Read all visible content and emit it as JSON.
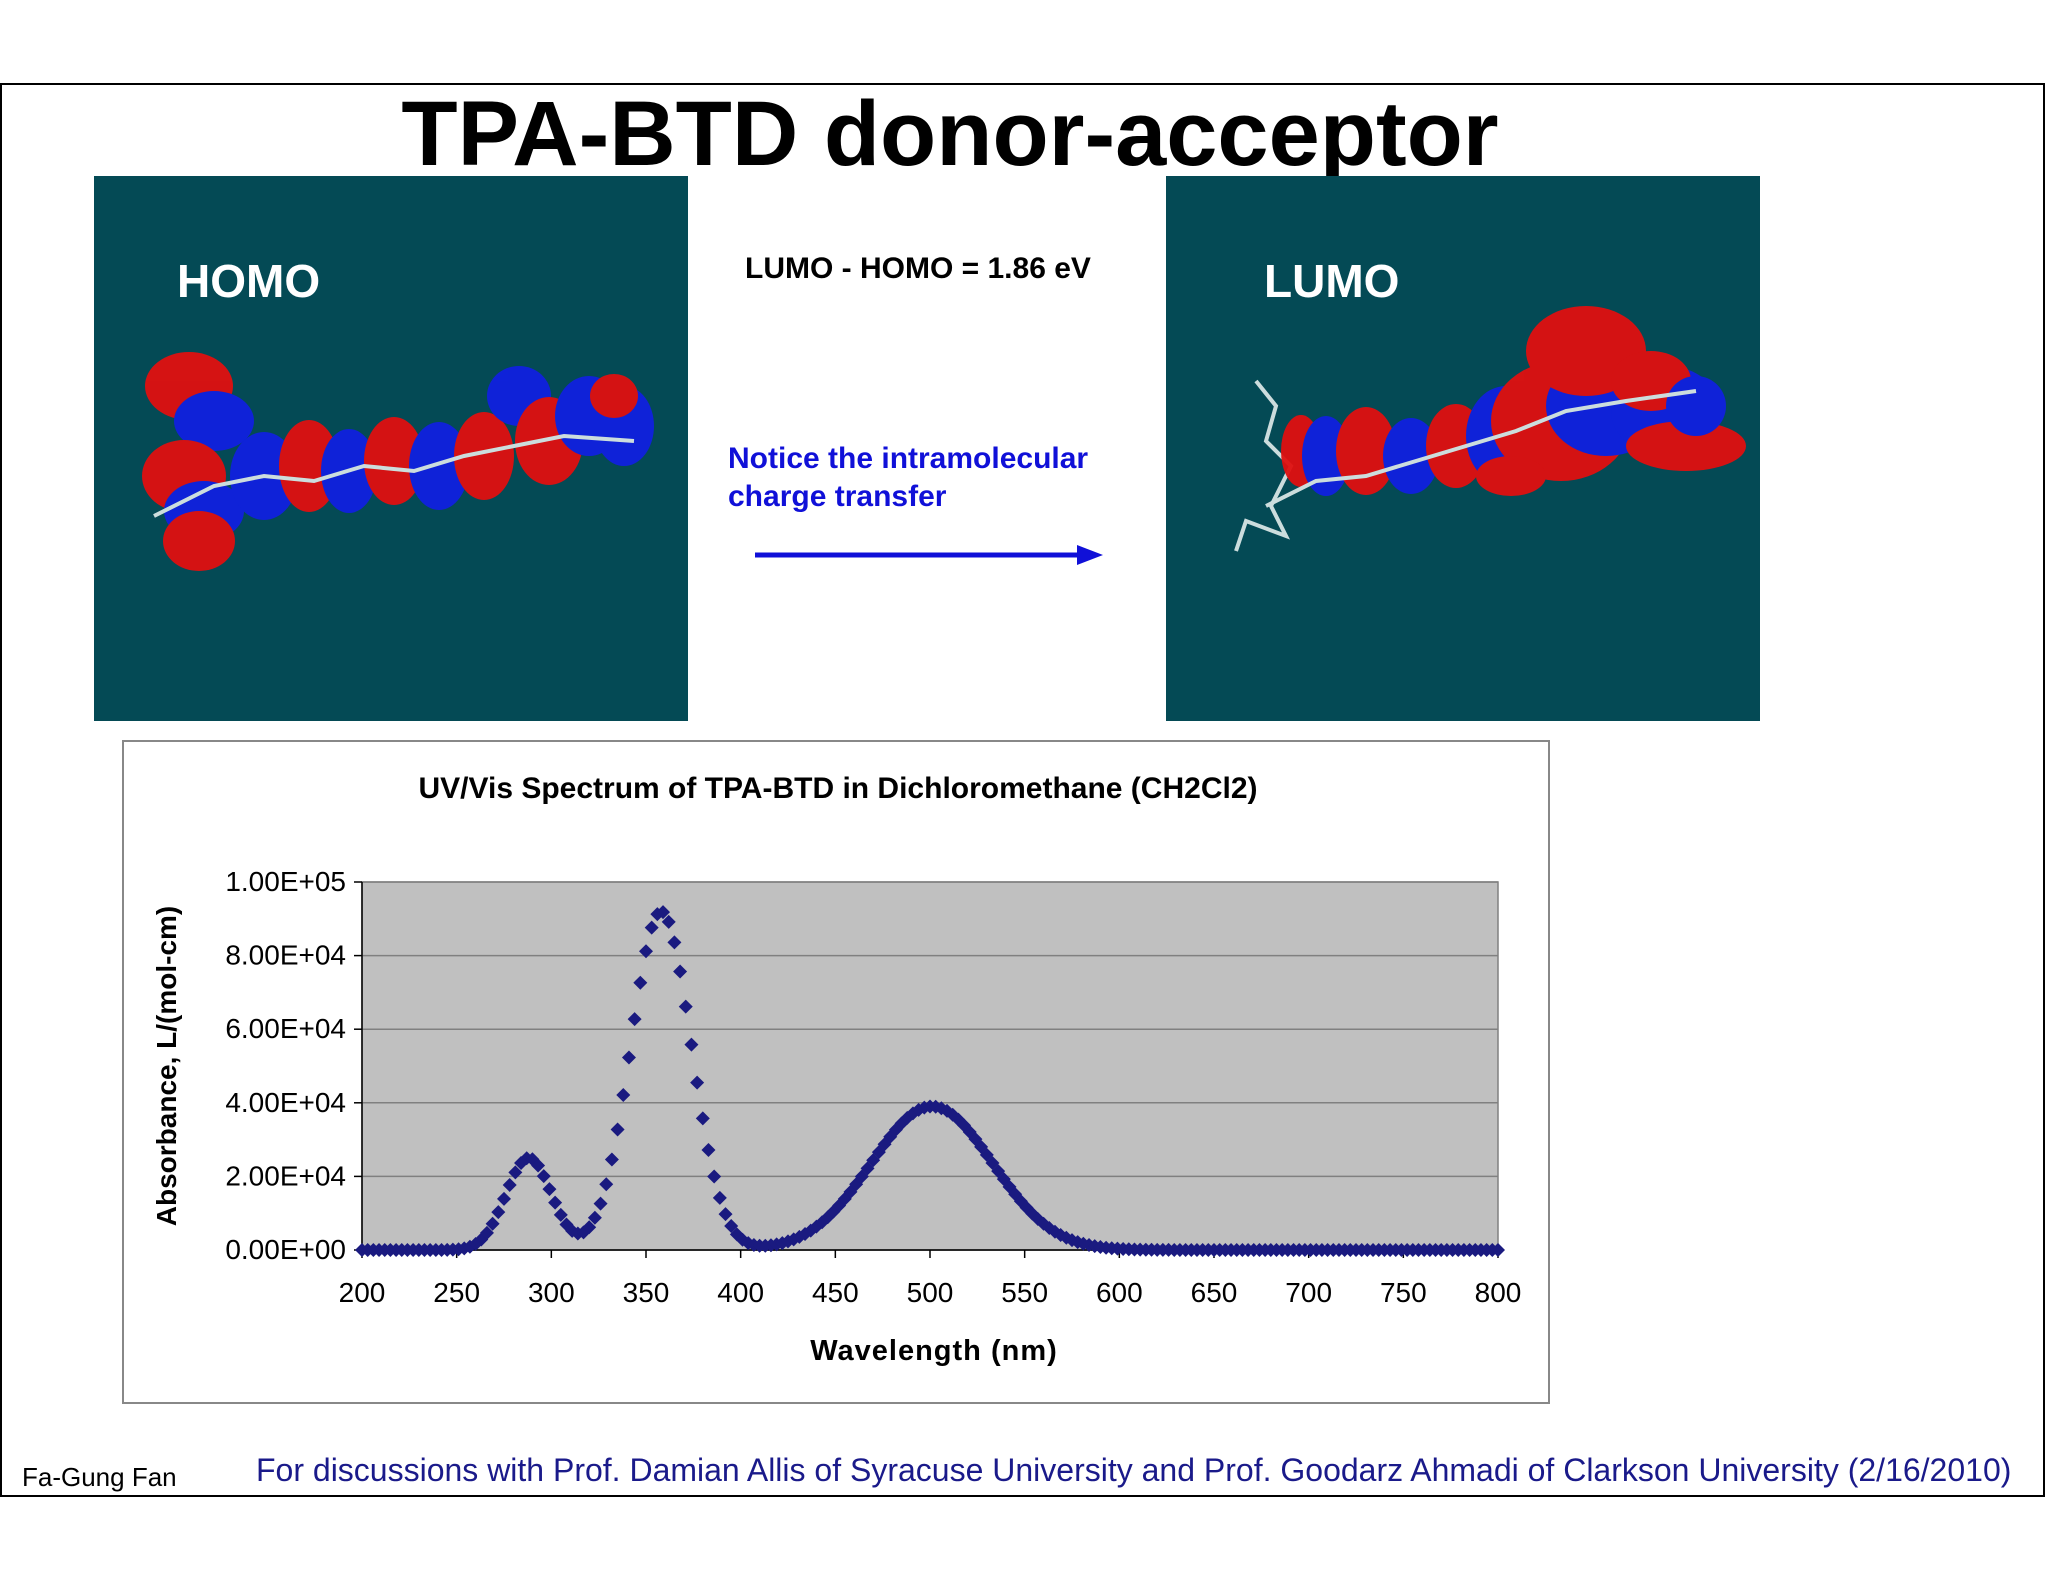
{
  "slide": {
    "title": "TPA-BTD donor-acceptor",
    "homo_label": "HOMO",
    "lumo_label": "LUMO",
    "gap_text": "LUMO - HOMO = 1.86 eV",
    "notice_line1": "Notice the intramolecular",
    "notice_line2": "charge transfer",
    "footer_author": "Fa-Gung Fan",
    "footer_note": "For discussions with Prof. Damian Allis of Syracuse University and Prof. Goodarz Ahmadi of Clarkson University (2/16/2010)"
  },
  "colors": {
    "panel_bg": "#044a55",
    "orbital_positive": "#e01010",
    "orbital_negative": "#1020e0",
    "series": "#1a1a80",
    "plot_bg": "#c0c0c0",
    "arrow": "#1010d8"
  },
  "chart_data": {
    "type": "scatter",
    "title": "UV/Vis Spectrum of TPA-BTD in Dichloromethane (CH2Cl2)",
    "xlabel": "Wavelength (nm)",
    "ylabel": "Absorbance, L/(mol-cm)",
    "xlim": [
      200,
      800
    ],
    "ylim": [
      0,
      100000
    ],
    "x_ticks": [
      "200",
      "250",
      "300",
      "350",
      "400",
      "450",
      "500",
      "550",
      "600",
      "650",
      "700",
      "750",
      "800"
    ],
    "y_ticks": [
      "0.00E+00",
      "2.00E+04",
      "4.00E+04",
      "6.00E+04",
      "8.00E+04",
      "1.00E+05"
    ],
    "grid": true,
    "legend": "none",
    "x_step": 3,
    "series": [
      {
        "marker": "diamond",
        "peaks": [
          {
            "center": 288,
            "height": 25000,
            "width": 12
          },
          {
            "center": 358,
            "height": 92000,
            "width": 16
          },
          {
            "center": 501,
            "height": 39000,
            "width": 32
          }
        ]
      }
    ]
  }
}
